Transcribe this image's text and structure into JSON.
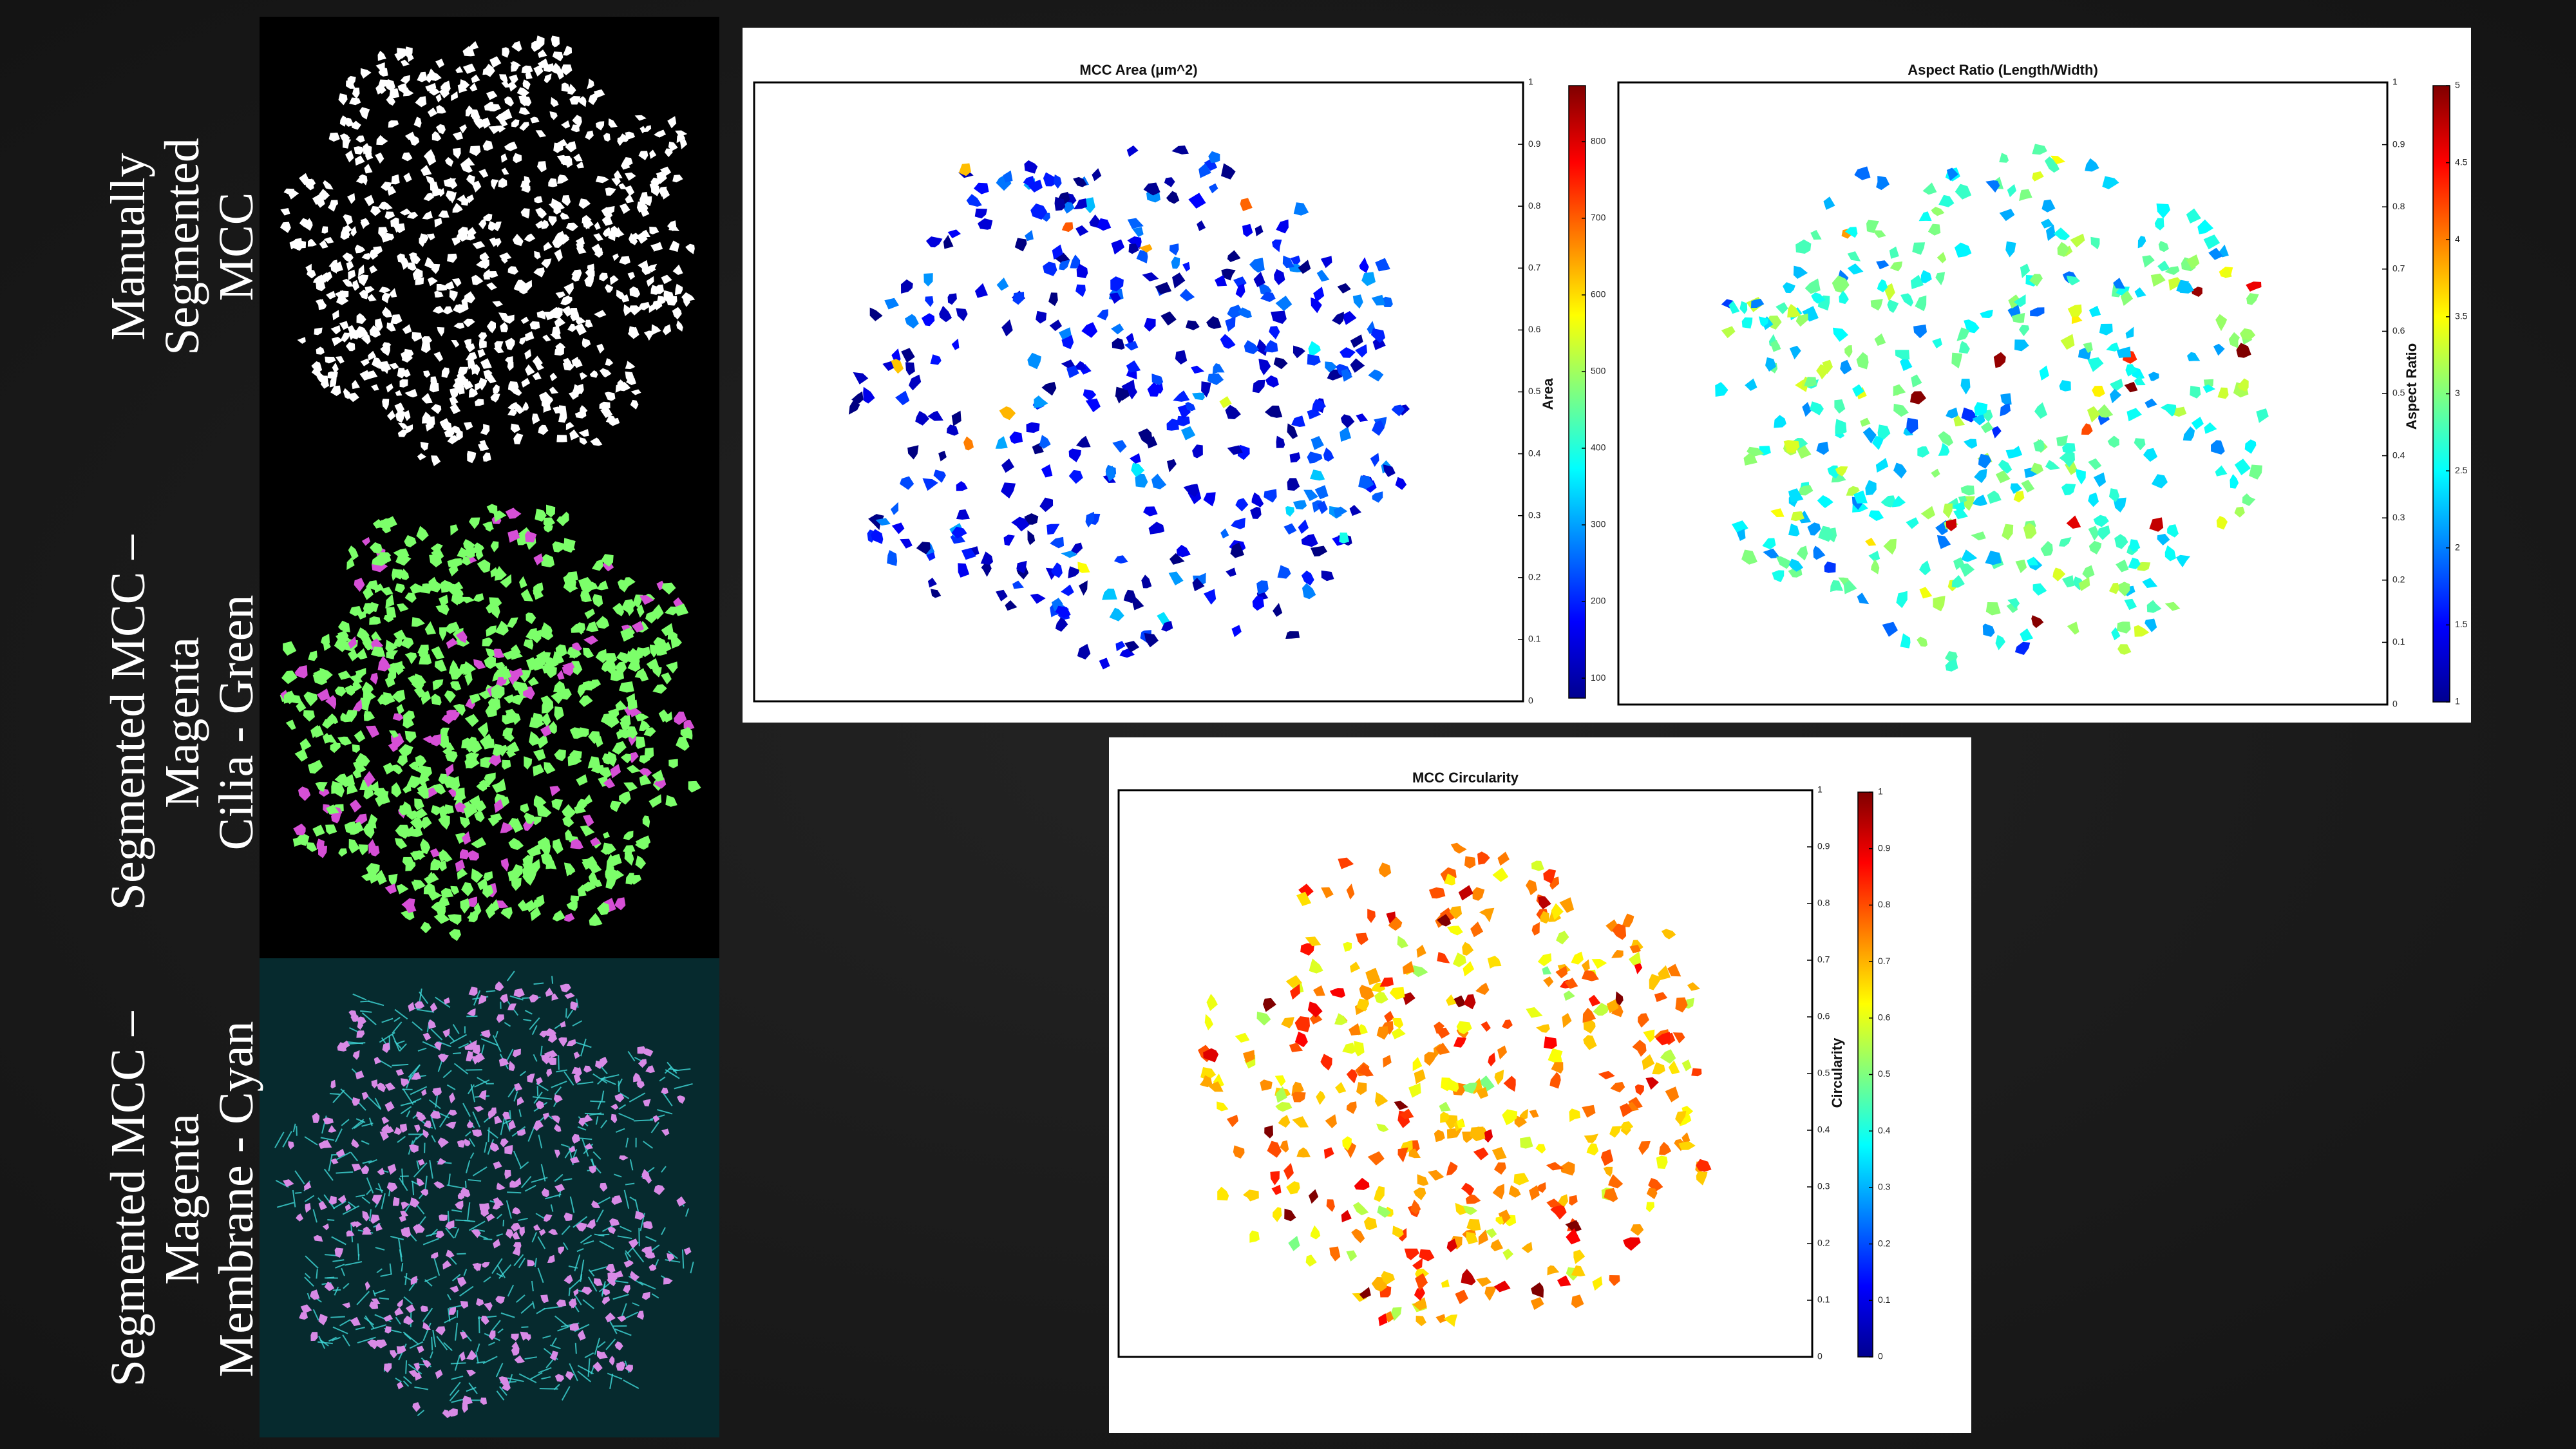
{
  "slide": {
    "labels": [
      [
        "Manually",
        "Segmented",
        "MCC"
      ],
      [
        "Segmented MCC –",
        "Magenta",
        "Cilia - Green"
      ],
      [
        "Segmented MCC –",
        "Magenta",
        "Membrane - Cyan"
      ]
    ]
  },
  "plots": [
    {
      "title": "MCC Area (μm^2)",
      "colorbar_label": "Area",
      "ylim": [
        0,
        1
      ],
      "yticks": [
        0,
        0.1,
        0.2,
        0.3,
        0.4,
        0.5,
        0.6,
        0.7,
        0.8,
        0.9,
        1
      ],
      "clim": [
        74,
        873
      ],
      "cticks": [
        100,
        200,
        300,
        400,
        500,
        600,
        700,
        800
      ],
      "colormap": "jet"
    },
    {
      "title": "Aspect Ratio (Length/Width)",
      "colorbar_label": "Aspect Ratio",
      "ylim": [
        0,
        1
      ],
      "yticks": [
        0,
        0.1,
        0.2,
        0.3,
        0.4,
        0.5,
        0.6,
        0.7,
        0.8,
        0.9,
        1
      ],
      "clim": [
        1,
        5
      ],
      "cticks": [
        1,
        1.5,
        2,
        2.5,
        3,
        3.5,
        4,
        4.5,
        5
      ],
      "colormap": "jet"
    },
    {
      "title": "MCC Circularity",
      "colorbar_label": "Circularity",
      "ylim": [
        0,
        1
      ],
      "yticks": [
        0,
        0.1,
        0.2,
        0.3,
        0.4,
        0.5,
        0.6,
        0.7,
        0.8,
        0.9,
        1
      ],
      "clim": [
        0,
        1
      ],
      "cticks": [
        0,
        0.1,
        0.2,
        0.3,
        0.4,
        0.5,
        0.6,
        0.7,
        0.8,
        0.9,
        1
      ],
      "colormap": "jet"
    }
  ]
}
